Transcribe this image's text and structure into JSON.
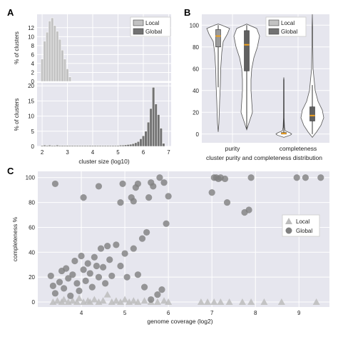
{
  "panel_labels": {
    "a": "A",
    "b": "B",
    "c": "C"
  },
  "colors": {
    "local": "#c2c2c2",
    "global": "#727272",
    "local_point": "#bcbcbc",
    "global_point": "#808080",
    "grid_bg": "#e6e6ee",
    "grid_line": "#ffffff",
    "violin_fill": "#ffffff",
    "violin_edge": "#555555",
    "median": "#f2a21e"
  },
  "chart_data": [
    {
      "id": "A_top",
      "type": "bar",
      "legend": [
        "Local",
        "Global"
      ],
      "legend_position": "top-right",
      "ylabel": "% of clusters",
      "xlim": [
        1.8,
        7.1
      ],
      "ylim": [
        0,
        15
      ],
      "yticks": [
        0,
        2,
        4,
        6,
        8,
        10,
        12
      ],
      "bin_width": 0.1,
      "grid": true,
      "series": [
        {
          "name": "Local",
          "x": [
            2.0,
            2.1,
            2.2,
            2.3,
            2.4,
            2.5,
            2.6,
            2.7,
            2.8,
            2.9,
            3.0,
            3.1
          ],
          "values": [
            5.0,
            9.0,
            11.0,
            13.5,
            14.2,
            12.5,
            11.2,
            9.4,
            7.0,
            5.0,
            2.8,
            1.0
          ]
        }
      ]
    },
    {
      "id": "A_bottom",
      "type": "bar",
      "ylabel": "% of clusters",
      "xlabel": "cluster size (log10)",
      "xlim": [
        1.8,
        7.1
      ],
      "ylim": [
        0,
        21
      ],
      "yticks": [
        0,
        5,
        10,
        15,
        20
      ],
      "xticks": [
        2,
        3,
        4,
        5,
        6,
        7
      ],
      "bin_width": 0.1,
      "grid": true,
      "series": [
        {
          "name": "Global",
          "x": [
            2.0,
            2.1,
            2.2,
            2.3,
            2.4,
            2.5,
            2.6,
            2.7,
            2.8,
            2.9,
            3.0,
            3.1,
            3.2,
            3.3,
            3.4,
            3.5,
            3.6,
            3.7,
            3.8,
            3.9,
            4.0,
            4.1,
            4.2,
            4.3,
            4.4,
            4.5,
            4.6,
            4.7,
            4.8,
            4.9,
            5.0,
            5.1,
            5.2,
            5.3,
            5.4,
            5.5,
            5.6,
            5.7,
            5.8,
            5.9,
            6.0,
            6.1,
            6.2,
            6.3,
            6.4,
            6.5,
            6.6,
            6.7,
            6.8
          ],
          "values": [
            0.3,
            0.4,
            0.3,
            0.4,
            0.3,
            0.3,
            0.4,
            0.3,
            0.3,
            0.3,
            0.3,
            0.3,
            0.3,
            0.3,
            0.3,
            0.3,
            0.3,
            0.3,
            0.3,
            0.3,
            0.3,
            0.3,
            0.3,
            0.3,
            0.3,
            0.3,
            0.3,
            0.3,
            0.3,
            0.3,
            0.3,
            0.4,
            0.4,
            0.5,
            0.6,
            0.7,
            0.9,
            1.2,
            1.6,
            2.5,
            3.5,
            5.0,
            8.0,
            12.5,
            19.5,
            14.0,
            10.5,
            6.0,
            1.0
          ]
        }
      ]
    },
    {
      "id": "B",
      "type": "violin",
      "legend": [
        "Local",
        "Global"
      ],
      "legend_position": "top-right",
      "xlabel": "cluster purity and completeness distribution",
      "categories": [
        "purity",
        "completeness"
      ],
      "ylim": [
        -8,
        110
      ],
      "yticks": [
        0,
        20,
        40,
        60,
        80,
        100
      ],
      "grid": true,
      "series": [
        {
          "name": "Local",
          "category": "purity",
          "box": {
            "min": 43,
            "q1": 80,
            "median": 90,
            "q3": 96,
            "max": 100
          }
        },
        {
          "name": "Global",
          "category": "purity",
          "box": {
            "min": 5,
            "q1": 58,
            "median": 82,
            "q3": 95,
            "max": 100
          }
        },
        {
          "name": "Local",
          "category": "completeness",
          "box": {
            "min": 0,
            "q1": 0,
            "median": 0.6,
            "q3": 1.5,
            "max": 50
          }
        },
        {
          "name": "Global",
          "category": "completeness",
          "box": {
            "min": 0,
            "q1": 12,
            "median": 17,
            "q3": 25,
            "max": 45
          }
        }
      ]
    },
    {
      "id": "C",
      "type": "scatter",
      "xlabel": "genome coverage (log2)",
      "ylabel": "completeness %",
      "xlim": [
        3.0,
        9.7
      ],
      "ylim": [
        -4,
        105
      ],
      "xticks": [
        4,
        5,
        6,
        7,
        8,
        9
      ],
      "yticks": [
        0,
        20,
        40,
        60,
        80,
        100
      ],
      "legend": [
        "Local",
        "Global"
      ],
      "legend_position": "right",
      "grid": true,
      "series": [
        {
          "name": "Local",
          "marker": "triangle",
          "points": [
            [
              3.35,
              0
            ],
            [
              3.45,
              1
            ],
            [
              3.55,
              0
            ],
            [
              3.6,
              2
            ],
            [
              3.7,
              0
            ],
            [
              3.8,
              1
            ],
            [
              3.9,
              0
            ],
            [
              3.95,
              3
            ],
            [
              4.05,
              0
            ],
            [
              4.15,
              1
            ],
            [
              4.2,
              0
            ],
            [
              4.3,
              2
            ],
            [
              4.4,
              0
            ],
            [
              4.5,
              1
            ],
            [
              4.6,
              6
            ],
            [
              4.7,
              0
            ],
            [
              4.8,
              1
            ],
            [
              4.9,
              0
            ],
            [
              5.0,
              2
            ],
            [
              5.1,
              0
            ],
            [
              5.2,
              1
            ],
            [
              5.3,
              0
            ],
            [
              5.45,
              1
            ],
            [
              5.6,
              0
            ],
            [
              5.75,
              0
            ],
            [
              5.9,
              1
            ],
            [
              6.0,
              0
            ],
            [
              6.75,
              0
            ],
            [
              6.9,
              0
            ],
            [
              7.05,
              0
            ],
            [
              7.2,
              0
            ],
            [
              7.4,
              0
            ],
            [
              7.7,
              0
            ],
            [
              7.9,
              0
            ],
            [
              8.2,
              0
            ],
            [
              8.6,
              0
            ],
            [
              9.4,
              0
            ]
          ]
        },
        {
          "name": "Global",
          "marker": "circle",
          "points": [
            [
              3.4,
              95
            ],
            [
              3.3,
              21
            ],
            [
              3.35,
              13
            ],
            [
              3.4,
              7
            ],
            [
              3.5,
              16
            ],
            [
              3.55,
              25
            ],
            [
              3.6,
              11
            ],
            [
              3.65,
              27
            ],
            [
              3.7,
              19
            ],
            [
              3.75,
              5
            ],
            [
              3.8,
              22
            ],
            [
              3.85,
              33
            ],
            [
              3.9,
              15
            ],
            [
              3.95,
              9
            ],
            [
              4.0,
              37
            ],
            [
              4.05,
              26
            ],
            [
              4.1,
              17
            ],
            [
              4.15,
              31
            ],
            [
              4.2,
              23
            ],
            [
              4.25,
              12
            ],
            [
              4.3,
              36
            ],
            [
              4.35,
              29
            ],
            [
              4.4,
              20
            ],
            [
              4.45,
              43
            ],
            [
              4.5,
              28
            ],
            [
              4.55,
              15
            ],
            [
              4.6,
              45
            ],
            [
              4.65,
              34
            ],
            [
              4.7,
              21
            ],
            [
              4.8,
              46
            ],
            [
              4.9,
              29
            ],
            [
              5.0,
              39
            ],
            [
              5.05,
              20
            ],
            [
              5.2,
              43
            ],
            [
              5.3,
              22
            ],
            [
              5.4,
              51
            ],
            [
              5.45,
              12
            ],
            [
              5.5,
              56
            ],
            [
              5.6,
              2
            ],
            [
              5.75,
              6
            ],
            [
              5.85,
              10
            ],
            [
              5.95,
              63
            ],
            [
              4.05,
              84
            ],
            [
              4.4,
              93
            ],
            [
              4.9,
              80
            ],
            [
              4.95,
              95
            ],
            [
              5.15,
              84
            ],
            [
              5.2,
              81
            ],
            [
              5.25,
              92
            ],
            [
              5.3,
              95
            ],
            [
              5.55,
              84
            ],
            [
              5.65,
              93
            ],
            [
              5.8,
              100
            ],
            [
              5.9,
              96
            ],
            [
              6.0,
              85
            ],
            [
              7.05,
              100
            ],
            [
              7.1,
              100
            ],
            [
              7.15,
              99
            ],
            [
              7.2,
              100
            ],
            [
              7.3,
              99
            ],
            [
              7.35,
              80
            ],
            [
              7.0,
              88
            ],
            [
              7.75,
              72
            ],
            [
              7.85,
              74
            ],
            [
              7.9,
              100
            ],
            [
              8.95,
              100
            ],
            [
              9.15,
              100
            ],
            [
              9.5,
              100
            ],
            [
              5.6,
              96
            ]
          ]
        }
      ]
    }
  ]
}
